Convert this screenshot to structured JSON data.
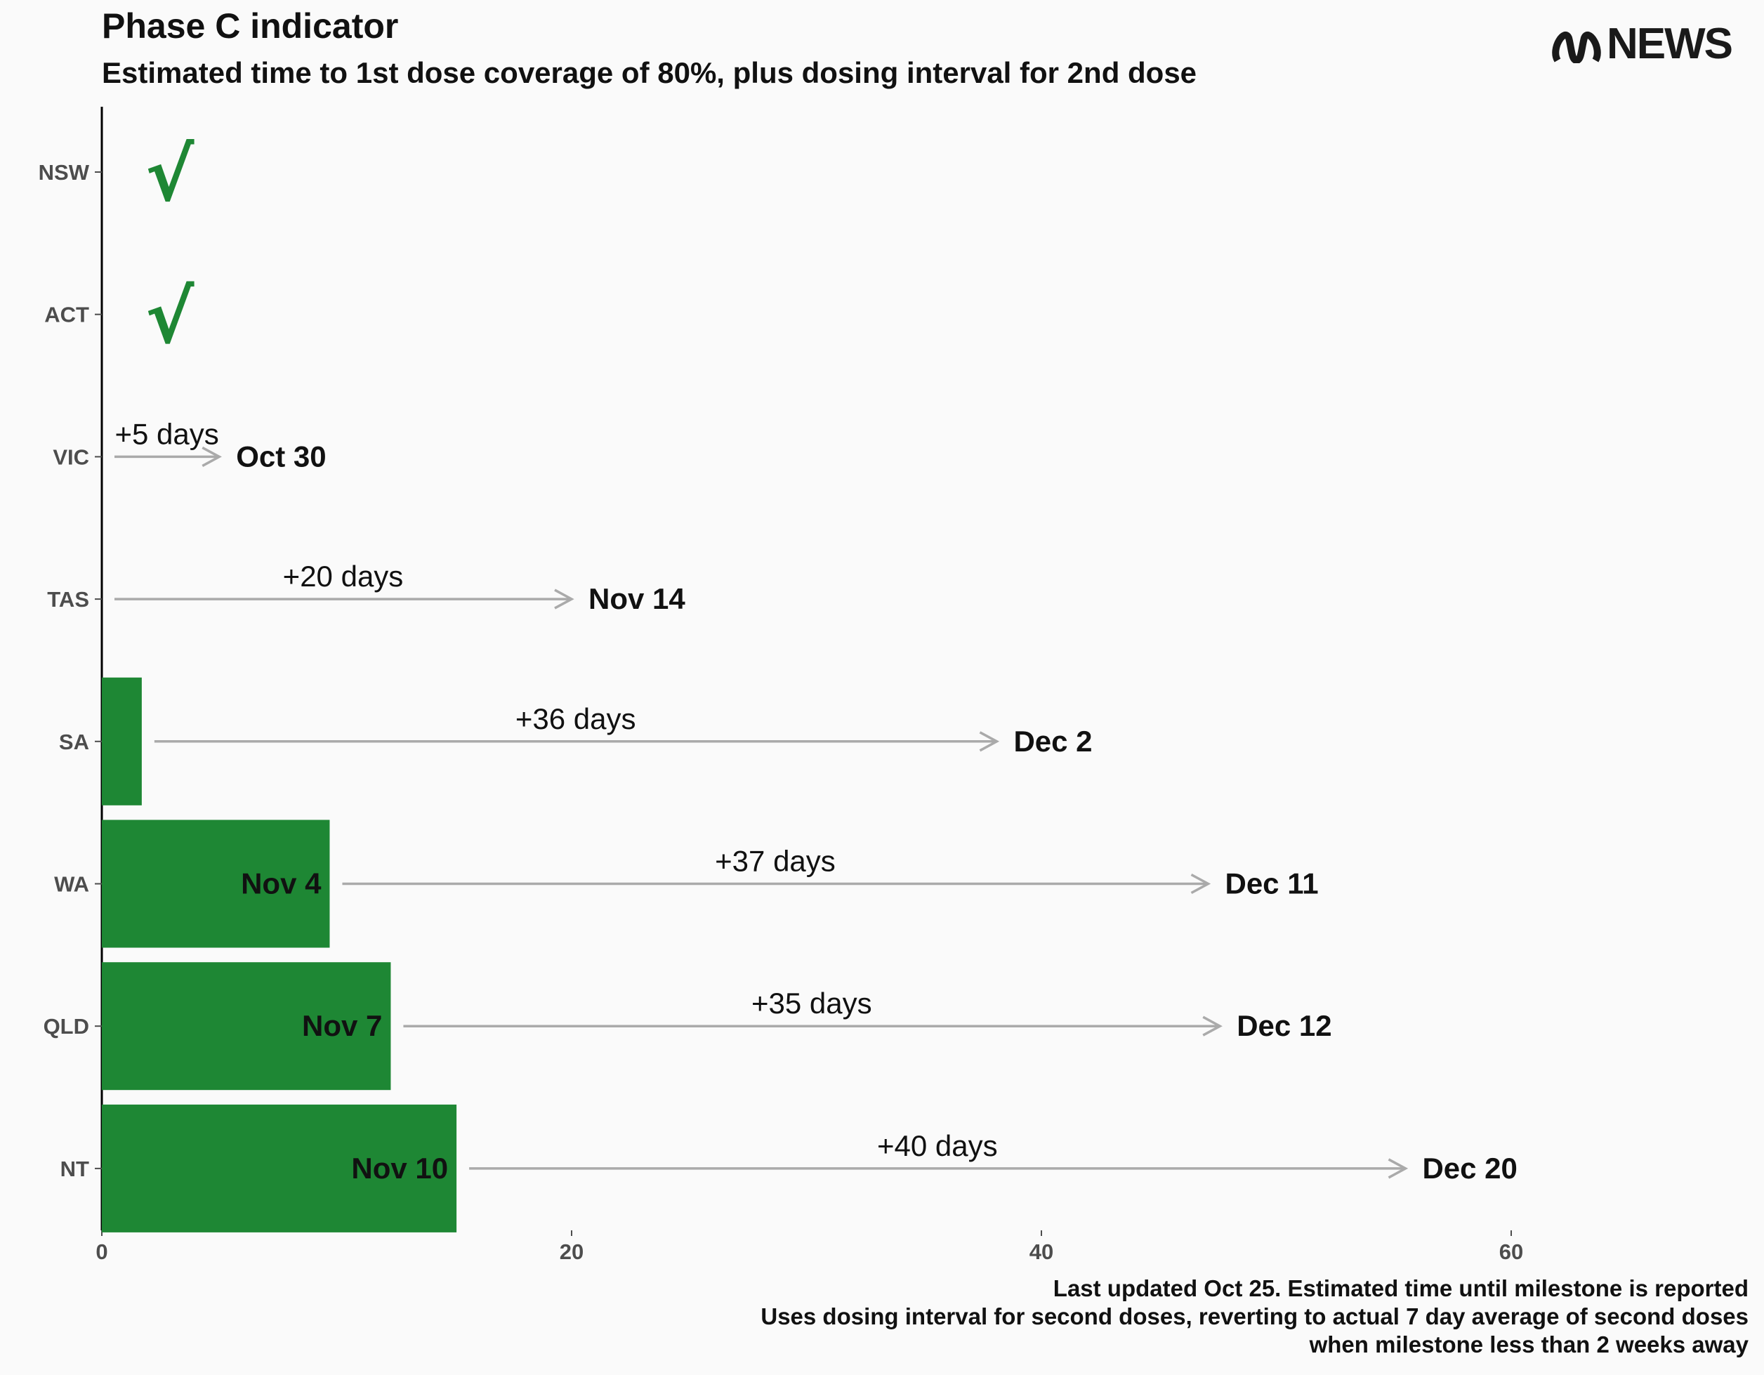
{
  "title": "Phase C indicator",
  "subtitle": "Estimated time to 1st dose coverage of 80%, plus dosing interval for 2nd dose",
  "logo": {
    "text": "NEWS",
    "icon": "abc-logo-icon"
  },
  "caption": [
    "Last updated Oct 25. Estimated time until milestone is reported",
    "Uses dosing interval for second doses, reverting to actual 7 day average of second doses",
    "when milestone less than 2 weeks away"
  ],
  "colors": {
    "bar": "#1e8734",
    "check": "#1e8734",
    "arrow": "#aaaaaa",
    "axis": "#000000",
    "tick_label": "#4d4d4d"
  },
  "chart_data": {
    "type": "bar",
    "orientation": "horizontal",
    "categories": [
      "NSW",
      "ACT",
      "VIC",
      "TAS",
      "SA",
      "WA",
      "QLD",
      "NT"
    ],
    "first_dose_days": [
      0,
      0,
      0,
      0,
      1.7,
      9.7,
      12.3,
      15.1
    ],
    "first_dose_date_labels": [
      "",
      "",
      "",
      "",
      "",
      "Nov 4",
      "Nov 7",
      "Nov 10"
    ],
    "completed": [
      true,
      true,
      false,
      false,
      false,
      false,
      false,
      false
    ],
    "second_dose_interval_labels": [
      "",
      "",
      "+5 days",
      "+20 days",
      "+36 days",
      "+37 days",
      "+35 days",
      "+40 days"
    ],
    "second_dose_end_days": [
      null,
      null,
      5,
      20,
      38.1,
      47.1,
      47.6,
      55.5
    ],
    "second_dose_date_labels": [
      "",
      "",
      "Oct 30",
      "Nov 14",
      "Dec 2",
      "Dec 11",
      "Dec 12",
      "Dec 20"
    ],
    "x_ticks": [
      0,
      20,
      40,
      60
    ],
    "xlim": [
      0,
      70
    ],
    "xlabel": "",
    "ylabel": "",
    "grid": false
  }
}
